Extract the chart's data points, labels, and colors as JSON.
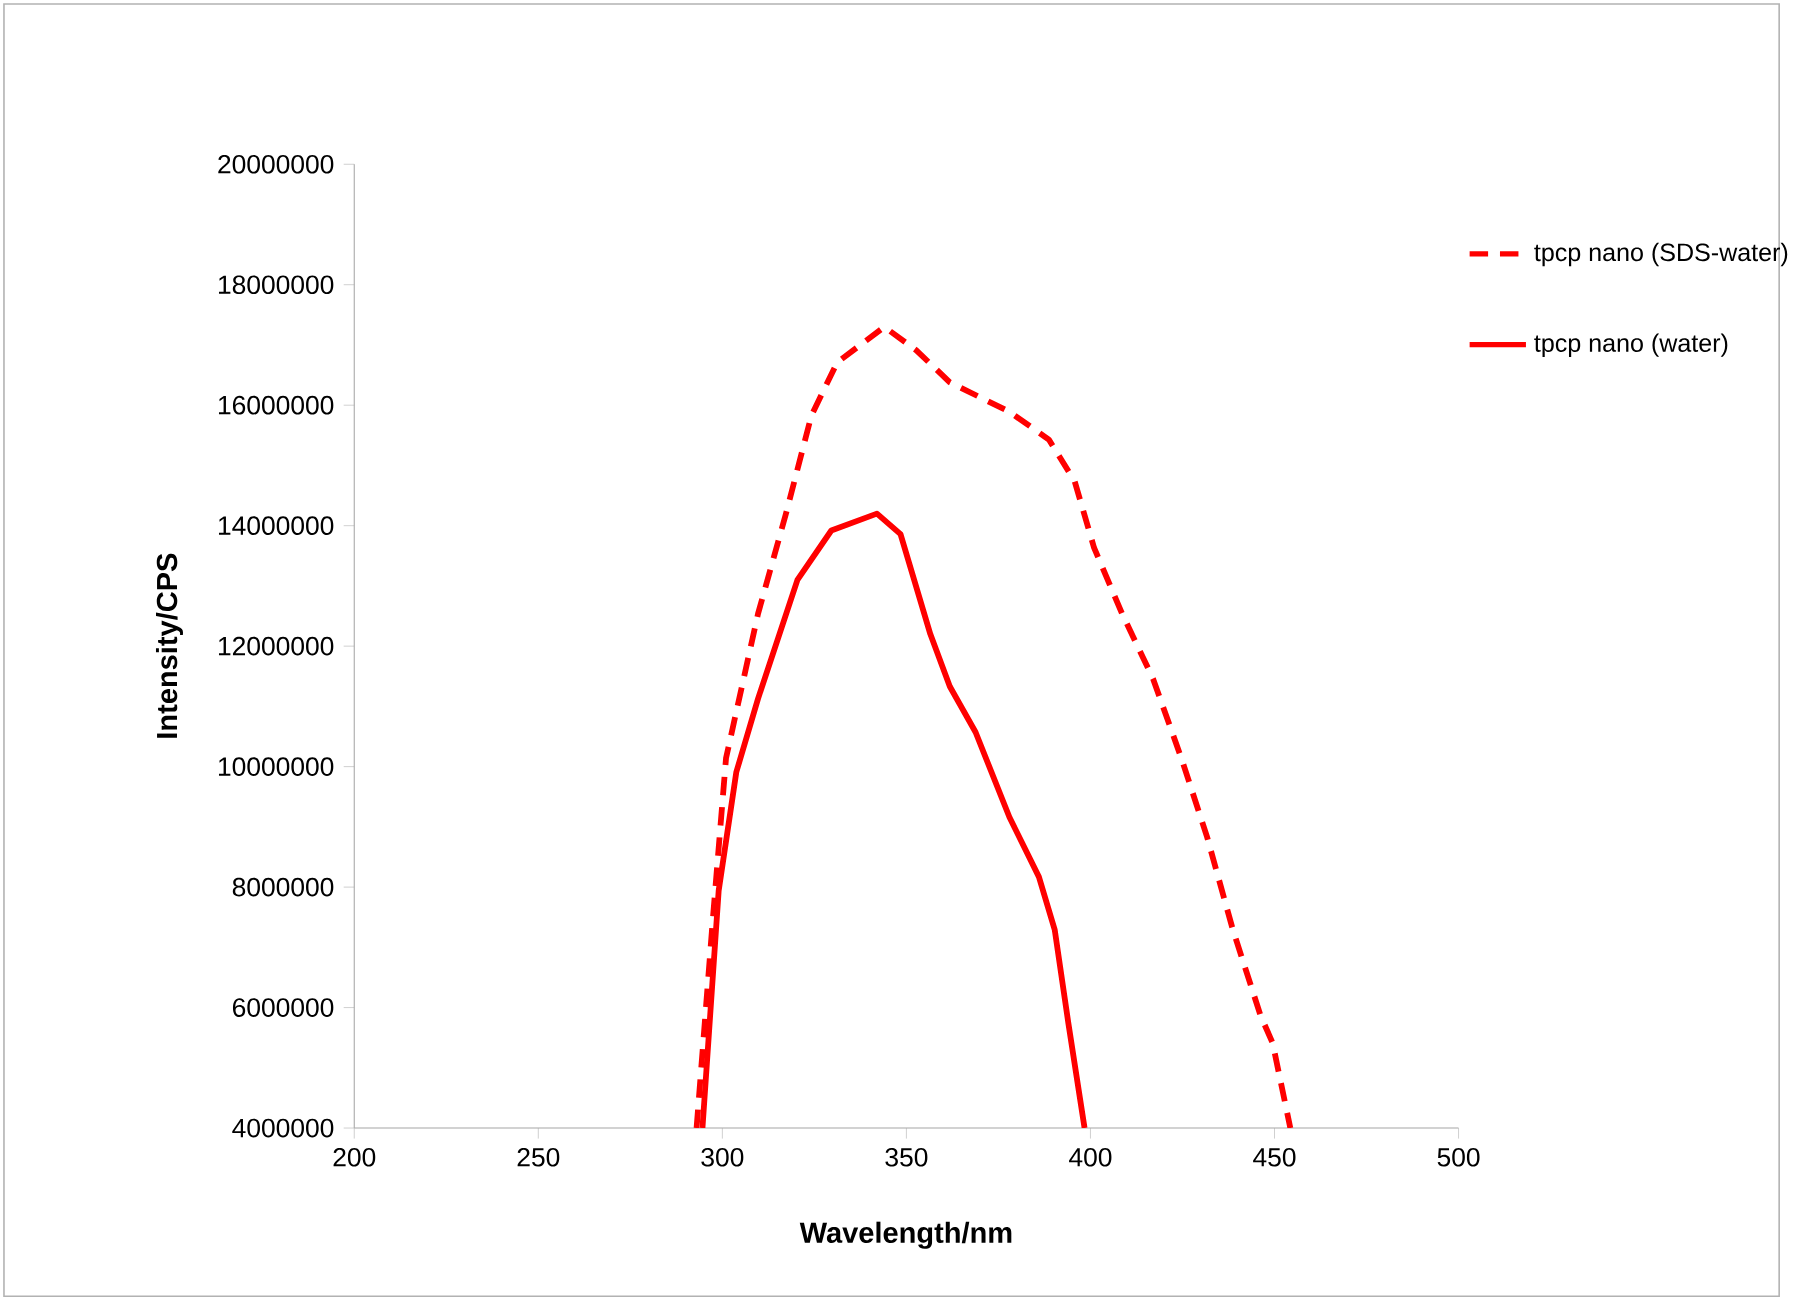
{
  "chart_data": {
    "type": "line",
    "xlabel": "Wavelength/nm",
    "ylabel": "Intensity/CPS",
    "xlim": [
      200,
      500
    ],
    "xticks": [
      200,
      250,
      300,
      350,
      400,
      450,
      500
    ],
    "ylim": [
      4000000,
      20000000
    ],
    "yticks": [
      4000000,
      6000000,
      8000000,
      10000000,
      12000000,
      14000000,
      16000000,
      18000000,
      20000000
    ],
    "grid": false,
    "legend": "top right",
    "marker": "none",
    "series": [
      {
        "name": "tpcp nano (SDS-water)",
        "color": "#ff0000",
        "line_style": "dashed",
        "x": [
          293,
          297.3,
          301,
          309.7,
          317.2,
          324.2,
          331.2,
          344,
          352.7,
          361.8,
          378,
          388.7,
          395.7,
          401,
          408.6,
          417,
          424.7,
          431.7,
          438.7,
          446.2,
          449.5,
          454.3
        ],
        "values": [
          4000000,
          7380000,
          10140000,
          12540000,
          14180000,
          15830000,
          16710000,
          17300000,
          16910000,
          16380000,
          15890000,
          15430000,
          14740000,
          13630000,
          12540000,
          11460000,
          10140000,
          8830000,
          7290000,
          5870000,
          5410000,
          4000000
        ]
      },
      {
        "name": "tpcp nano (water)",
        "color": "#ff0000",
        "line_style": "solid",
        "x": [
          294.6,
          299,
          303.8,
          309.7,
          320.4,
          329.6,
          342,
          348.4,
          356.5,
          361.8,
          368.8,
          378,
          386,
          390.3,
          394,
          398.4
        ],
        "values": [
          4000000,
          7940000,
          9910000,
          11130000,
          13100000,
          13920000,
          14200000,
          13860000,
          12200000,
          11330000,
          10570000,
          9160000,
          8170000,
          7290000,
          5740000,
          4000000
        ]
      }
    ]
  }
}
